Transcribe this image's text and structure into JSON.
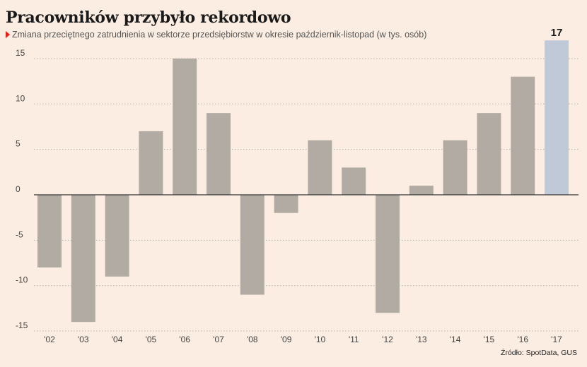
{
  "header": {
    "title": "Pracowników przybyło rekordowo",
    "subtitle": "Zmiana przeciętnego zatrudnienia w sektorze przedsiębiorstw w okresie październik-listopad (w tys. osób)"
  },
  "footer": {
    "source": "Źródło: SpotData, GUS"
  },
  "colors": {
    "bar": "#b2aba3",
    "highlight_bar": "#c0c9d8",
    "grid": "#b9b0a6",
    "axis": "#333333",
    "marker": "#e2231a"
  },
  "chart_data": {
    "type": "bar",
    "title": "Pracowników przybyło rekordowo",
    "subtitle": "Zmiana przeciętnego zatrudnienia w sektorze przedsiębiorstw w okresie październik-listopad (w tys. osób)",
    "categories": [
      "'02",
      "'03",
      "'04",
      "'05",
      "'06",
      "'07",
      "'08",
      "'09",
      "'10",
      "'11",
      "'12",
      "'13",
      "'14",
      "'15",
      "'16",
      "'17"
    ],
    "values": [
      -8,
      -14,
      -9,
      7,
      15,
      9,
      -11,
      -2,
      6,
      3,
      -13,
      1,
      6,
      9,
      13,
      17
    ],
    "highlight_index": 15,
    "data_labels": [
      {
        "index": 15,
        "text": "17"
      }
    ],
    "y_ticks": [
      15,
      10,
      5,
      0,
      -5,
      -10,
      -15
    ],
    "y_tick_labels": [
      "15",
      "10",
      "5",
      "0",
      "-5",
      "-10",
      "-15"
    ],
    "ylim": [
      -15,
      17
    ],
    "grid": true,
    "xlabel": "",
    "ylabel": ""
  }
}
